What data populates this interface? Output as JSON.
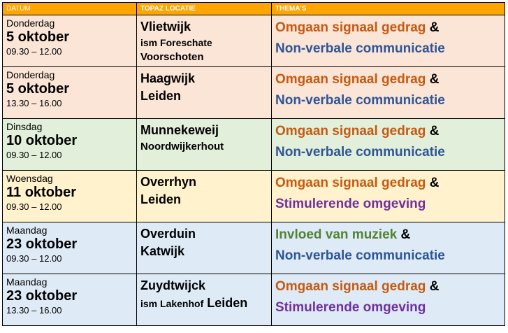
{
  "header": {
    "col1": "DATUM",
    "col2": "TOPAZ LOCATIE",
    "col3": "THEMA’S"
  },
  "amp": "&",
  "rows": [
    {
      "day": "Donderdag",
      "date": "5 oktober",
      "time": "09.30 – 12.00",
      "loc_line1": "Vlietwijk",
      "loc_line2": "ism Foreschate",
      "loc_line3": "Voorschoten",
      "theme1": "Omgaan signaal gedrag",
      "theme2": "Non-verbale communicatie",
      "bg": "#fbe5d6"
    },
    {
      "day": "Donderdag",
      "date": "5 oktober",
      "time": "13.30 – 16.00",
      "loc_line1": "Haagwijk",
      "loc_line2": "Leiden",
      "theme1": "Omgaan signaal gedrag",
      "theme2": "Non-verbale communicatie",
      "bg": "#fbe5d6"
    },
    {
      "day": "Dinsdag",
      "date": "10 oktober",
      "time": "09.30 – 12.00",
      "loc_line1": "Munnekeweij",
      "loc_line2": "Noordwijkerhout",
      "theme1": "Omgaan signaal gedrag",
      "theme2": "Non-verbale communicatie",
      "bg": "#e2efda"
    },
    {
      "day": "Woensdag",
      "date": "11 oktober",
      "time": "09.30 – 12.00",
      "loc_line1": "Overrhyn",
      "loc_line2": "Leiden",
      "theme1": "Omgaan signaal gedrag",
      "theme2": "Stimulerende omgeving",
      "bg": "#fff2cc"
    },
    {
      "day": "Maandag",
      "date": "23 oktober",
      "time": "09.30 – 12.00",
      "loc_line1": "Overduin",
      "loc_line2": "Katwijk",
      "theme1": "Invloed van muziek",
      "theme2": "Non-verbale communicatie",
      "bg": "#deebf7"
    },
    {
      "day": "Maandag",
      "date": "23 oktober",
      "time": "13.30 – 16.00",
      "loc_line1": "Zuydtwijck",
      "loc_line2a": "ism Lakenhof",
      "loc_line2b": "Leiden",
      "theme1": "Omgaan signaal gedrag",
      "theme2": "Stimulerende omgeving",
      "bg": "#deebf7"
    }
  ],
  "colors": {
    "header": "#ffa500",
    "orange_theme": "#c55a11",
    "blue_theme": "#2f5597",
    "purple_theme": "#7030a0",
    "green_theme": "#548235"
  }
}
